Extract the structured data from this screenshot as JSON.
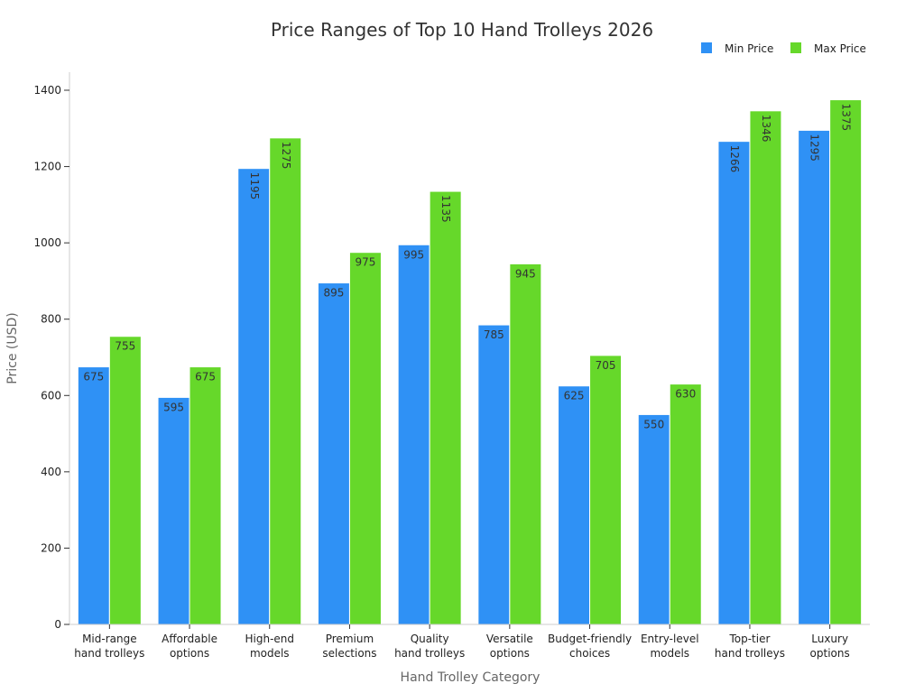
{
  "chart_data": {
    "type": "bar",
    "title": "Price Ranges of Top 10 Hand Trolleys 2026",
    "xlabel": "Hand Trolley Category",
    "ylabel": "Price (USD)",
    "ylim": [
      0,
      1400
    ],
    "yticks": [
      0,
      200,
      400,
      600,
      800,
      1000,
      1200,
      1400
    ],
    "grid": false,
    "legend_position": "top-right",
    "categories": [
      [
        "Mid-range",
        "hand trolleys"
      ],
      [
        "Affordable",
        "options"
      ],
      [
        "High-end",
        "models"
      ],
      [
        "Premium",
        "selections"
      ],
      [
        "Quality",
        "hand trolleys"
      ],
      [
        "Versatile",
        "options"
      ],
      [
        "Budget-friendly",
        "choices"
      ],
      [
        "Entry-level",
        "models"
      ],
      [
        "Top-tier",
        "hand trolleys"
      ],
      [
        "Luxury",
        "options"
      ]
    ],
    "series": [
      {
        "name": "Min Price",
        "color": "#2f91f5",
        "values": [
          675,
          595,
          1195,
          895,
          995,
          785,
          625,
          550,
          1266,
          1295
        ]
      },
      {
        "name": "Max Price",
        "color": "#66d82a",
        "values": [
          755,
          675,
          1275,
          975,
          1135,
          945,
          705,
          630,
          1346,
          1375
        ]
      }
    ]
  }
}
